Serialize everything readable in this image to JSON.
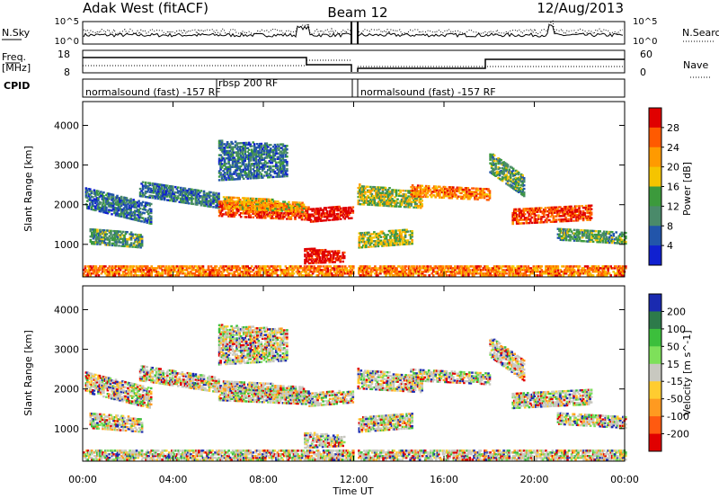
{
  "header": {
    "station": "Adak West (fitACF)",
    "beam": "Beam 12",
    "date": "12/Aug/2013"
  },
  "chart_data": [
    {
      "type": "line",
      "panel": "noise",
      "left_label": "N.Sky",
      "right_label": "N.Search",
      "left_ticks": [
        "10^5",
        "10^0"
      ],
      "right_ticks": [
        "10^5",
        "10^0"
      ]
    },
    {
      "type": "line",
      "panel": "frequency",
      "left_label_line1": "Freq.",
      "left_label_line2": "[MHz]",
      "right_label": "Nave",
      "left_ticks": [
        "18",
        "8"
      ],
      "right_ticks": [
        "60",
        "0"
      ],
      "cpid_label": "CPID",
      "modes": [
        {
          "label": "normalsound (fast) -157 RF",
          "start_h": 0,
          "end_h": 6
        },
        {
          "label": "rbsp 200 RF",
          "start_h": 6,
          "end_h": 12
        },
        {
          "label": "normalsound (fast) -157 RF",
          "start_h": 12,
          "end_h": 24
        }
      ]
    },
    {
      "type": "heatmap",
      "panel": "power",
      "ylabel": "Slant Range [km]",
      "yticks": [
        1000,
        2000,
        3000,
        4000
      ],
      "ylim": [
        180,
        4600
      ],
      "colorbar_label": "Power [dB]",
      "colorbar_ticks": [
        "28",
        "24",
        "20",
        "16",
        "12",
        "8",
        "4"
      ],
      "colorbar_colors": [
        "#e00000",
        "#ff5a00",
        "#ff9a00",
        "#f5c400",
        "#3c9a3c",
        "#4a8a6a",
        "#2255aa",
        "#1020d0"
      ]
    },
    {
      "type": "heatmap",
      "panel": "velocity",
      "ylabel": "Slant Range [km]",
      "yticks": [
        1000,
        2000,
        3000,
        4000
      ],
      "ylim": [
        180,
        4600
      ],
      "colorbar_label": "Velocity [m s^-1]",
      "colorbar_ticks": [
        "200",
        "100",
        "50",
        "15",
        "-15",
        "-50",
        "-100",
        "-200"
      ],
      "colorbar_colors": [
        "#1a2ab0",
        "#2d7a4a",
        "#3cbf3c",
        "#7ee05a",
        "#c8c8c0",
        "#ffcc30",
        "#ff9a20",
        "#ff5a10",
        "#e00000"
      ]
    }
  ],
  "xaxis": {
    "label": "Time UT",
    "ticks": [
      "00:00",
      "04:00",
      "08:00",
      "12:00",
      "16:00",
      "20:00",
      "00:00"
    ],
    "range_hours": [
      0,
      24
    ]
  },
  "colors": {
    "gray": "#c8c8c0",
    "green": "#3cbf3c",
    "orange": "#ff9a20",
    "red": "#e00000",
    "blue": "#1a2ab0"
  }
}
